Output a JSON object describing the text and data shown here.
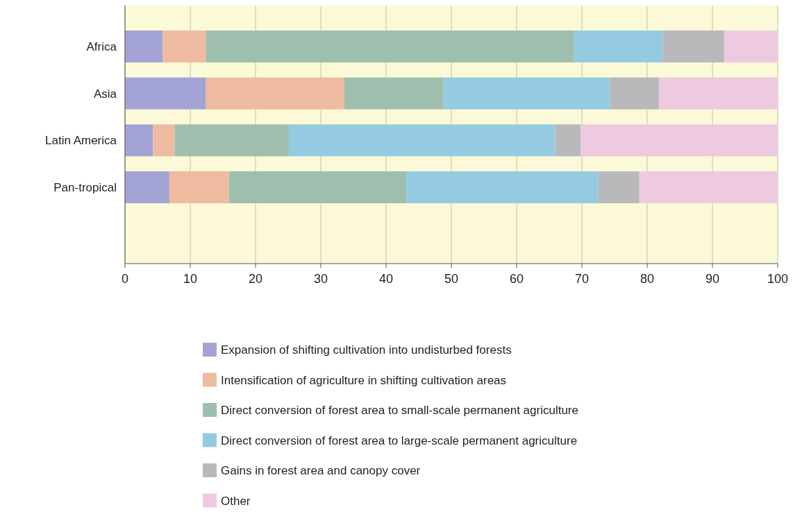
{
  "chart_data": {
    "type": "bar",
    "orientation": "horizontal",
    "stacked": true,
    "categories": [
      "Africa",
      "Asia",
      "Latin America",
      "Pan-tropical"
    ],
    "series": [
      {
        "name": "Expansion of shifting cultivation into undisturbed forests",
        "color": "#a3a3d6",
        "values": [
          5.8,
          12.4,
          4.3,
          6.8
        ]
      },
      {
        "name": "Intensification of agriculture in shifting cultivation areas",
        "color": "#eebba0",
        "values": [
          6.6,
          21.2,
          3.3,
          9.1
        ]
      },
      {
        "name": "Direct conversion of forest area to small-scale permanent agriculture",
        "color": "#9fbfae",
        "values": [
          56.4,
          15.2,
          17.5,
          27.2
        ]
      },
      {
        "name": "Direct conversion of forest area to large-scale permanent agriculture",
        "color": "#94cbe3",
        "values": [
          13.6,
          25.5,
          40.8,
          29.4
        ]
      },
      {
        "name": "Gains in forest area and canopy cover",
        "color": "#b9b9bb",
        "values": [
          9.4,
          7.5,
          3.9,
          6.3
        ]
      },
      {
        "name": "Other",
        "color": "#eecae0",
        "values": [
          8.2,
          18.2,
          30.2,
          21.2
        ]
      }
    ],
    "xlim": [
      0,
      100
    ],
    "xticks": [
      0,
      10,
      20,
      30,
      40,
      50,
      60,
      70,
      80,
      90,
      100
    ],
    "grid": "x",
    "legend": "bottom"
  }
}
